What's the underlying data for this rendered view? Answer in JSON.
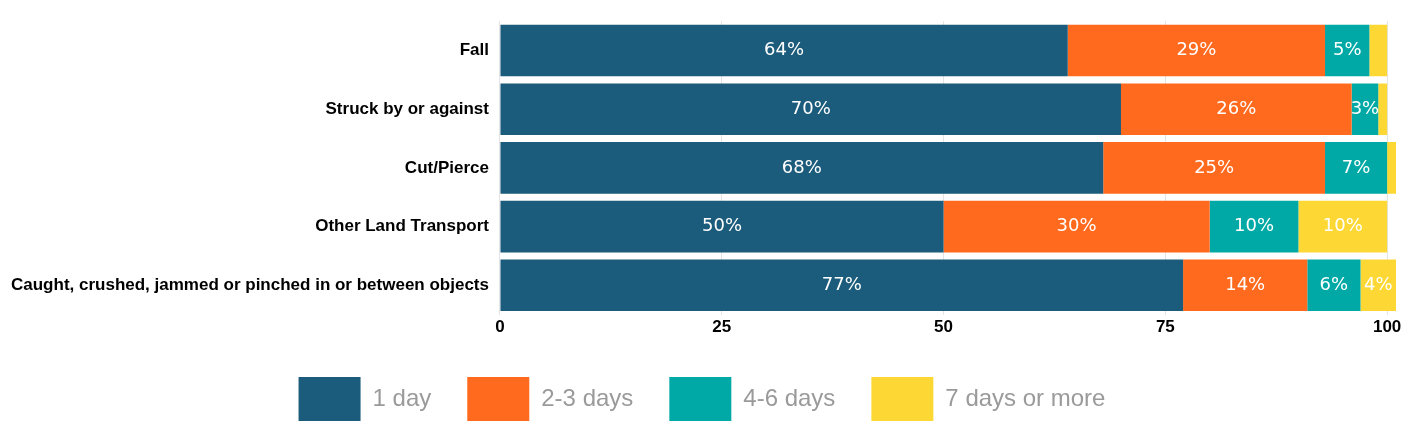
{
  "chart_data": {
    "type": "bar",
    "orientation": "horizontal",
    "stacked": true,
    "categories": [
      "Fall",
      "Struck by or against",
      "Cut/Pierce",
      "Other Land Transport",
      "Caught, crushed, jammed or pinched in or between objects"
    ],
    "series": [
      {
        "name": "1 day",
        "color": "#1b5b7b",
        "values": [
          64,
          70,
          68,
          50,
          77
        ],
        "value_labels": [
          "64%",
          "70%",
          "68%",
          "50%",
          "77%"
        ]
      },
      {
        "name": "2-3 days",
        "color": "#ff6a1f",
        "values": [
          29,
          26,
          25,
          30,
          14
        ],
        "value_labels": [
          "29%",
          "26%",
          "25%",
          "30%",
          "14%"
        ]
      },
      {
        "name": "4-6 days",
        "color": "#00a9a5",
        "values": [
          5,
          3,
          7,
          10,
          6
        ],
        "value_labels": [
          "5%",
          "3%",
          "7%",
          "10%",
          "6%"
        ]
      },
      {
        "name": "7 days or more",
        "color": "#fdd835",
        "values": [
          2,
          1,
          1,
          10,
          4
        ],
        "value_labels": [
          null,
          null,
          null,
          "10%",
          "4%"
        ]
      }
    ],
    "xlim": [
      0,
      101
    ],
    "xticks": [
      0,
      25,
      50,
      75,
      100
    ],
    "grid": "x",
    "legend": "bottom"
  }
}
